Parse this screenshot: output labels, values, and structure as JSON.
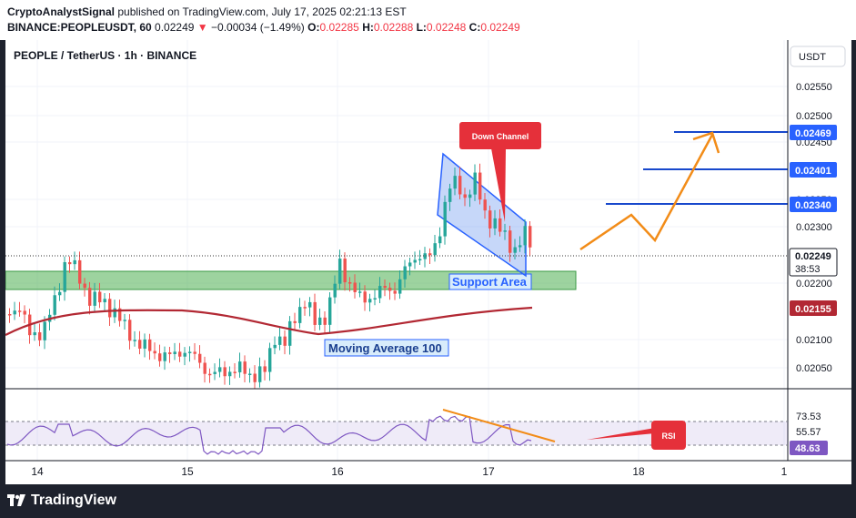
{
  "header": {
    "publisher": "CryptoAnalystSignal",
    "published_text": "published on TradingView.com, July 17, 2025 02:21:13 EST",
    "symbol_line": "BINANCE:PEOPLEUSDT, 60",
    "last": "0.02249",
    "change_arrow": "▼",
    "change": "−0.00034 (−1.49%)",
    "o_label": "O:",
    "o_value": "0.02285",
    "h_label": "H:",
    "h_value": "0.02288",
    "l_label": "L:",
    "l_value": "0.02248",
    "c_label": "C:",
    "c_value": "0.02249"
  },
  "chart": {
    "title": "PEOPLE / TetherUS · 1h · BINANCE",
    "currency_button": "USDT",
    "price_ticks": [
      "0.02550",
      "0.02500",
      "0.02450",
      "0.02350",
      "0.02300",
      "0.02200",
      "0.02100",
      "0.02050"
    ],
    "price_tags": [
      {
        "label": "0.02469",
        "color": "#2962ff"
      },
      {
        "label": "0.02401",
        "color": "#2962ff"
      },
      {
        "label": "0.02340",
        "color": "#2962ff"
      },
      {
        "label": "0.02155",
        "color": "#b22833"
      }
    ],
    "current_price_tag": {
      "price": "0.02249",
      "countdown": "38:53"
    },
    "annotations": {
      "down_channel": "Down Channel",
      "support_area": "Support Area",
      "moving_average": "Moving Average 100",
      "rsi": "RSI"
    },
    "colors": {
      "up": "#26a69a",
      "down": "#ef5350",
      "ma": "#b22833",
      "target": "#1848cc",
      "projection": "#f28c18",
      "rsi_line": "#7e57c2",
      "support_fill": "#4caf50",
      "channel_fill": "#5b8def"
    }
  },
  "rsi_panel": {
    "ticks": [
      "73.53",
      "55.57"
    ],
    "current_tag": "48.63"
  },
  "time_axis": {
    "labels": [
      "14",
      "15",
      "16",
      "17",
      "18",
      "1"
    ]
  },
  "footer": {
    "brand": "TradingView"
  }
}
